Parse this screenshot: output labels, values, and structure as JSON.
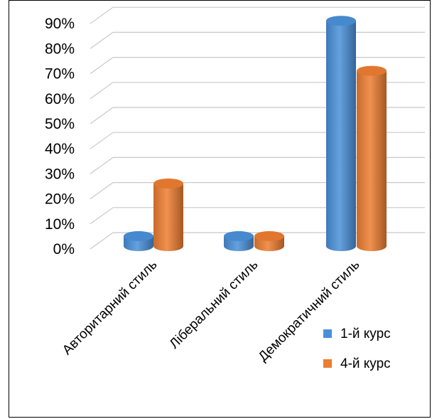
{
  "chart_data": {
    "type": "bar",
    "title": "",
    "xlabel": "",
    "ylabel": "",
    "categories": [
      "Авторитарний стиль",
      "Ліберальний стиль",
      "Демократичний стиль"
    ],
    "series": [
      {
        "name": "1-й курс",
        "values": [
          4,
          4,
          90
        ],
        "color": "#4a90d9"
      },
      {
        "name": "4-й курс",
        "values": [
          25,
          4,
          70
        ],
        "color": "#ed7d31"
      }
    ],
    "ylim": [
      0,
      90
    ],
    "yticks": [
      0,
      10,
      20,
      30,
      40,
      50,
      60,
      70,
      80,
      90
    ],
    "ytick_labels": [
      "0%",
      "10%",
      "20%",
      "30%",
      "40%",
      "50%",
      "60%",
      "70%",
      "80%",
      "90%"
    ],
    "grid": true,
    "style": "3d-cylinder",
    "legend_position": "bottom-right"
  }
}
